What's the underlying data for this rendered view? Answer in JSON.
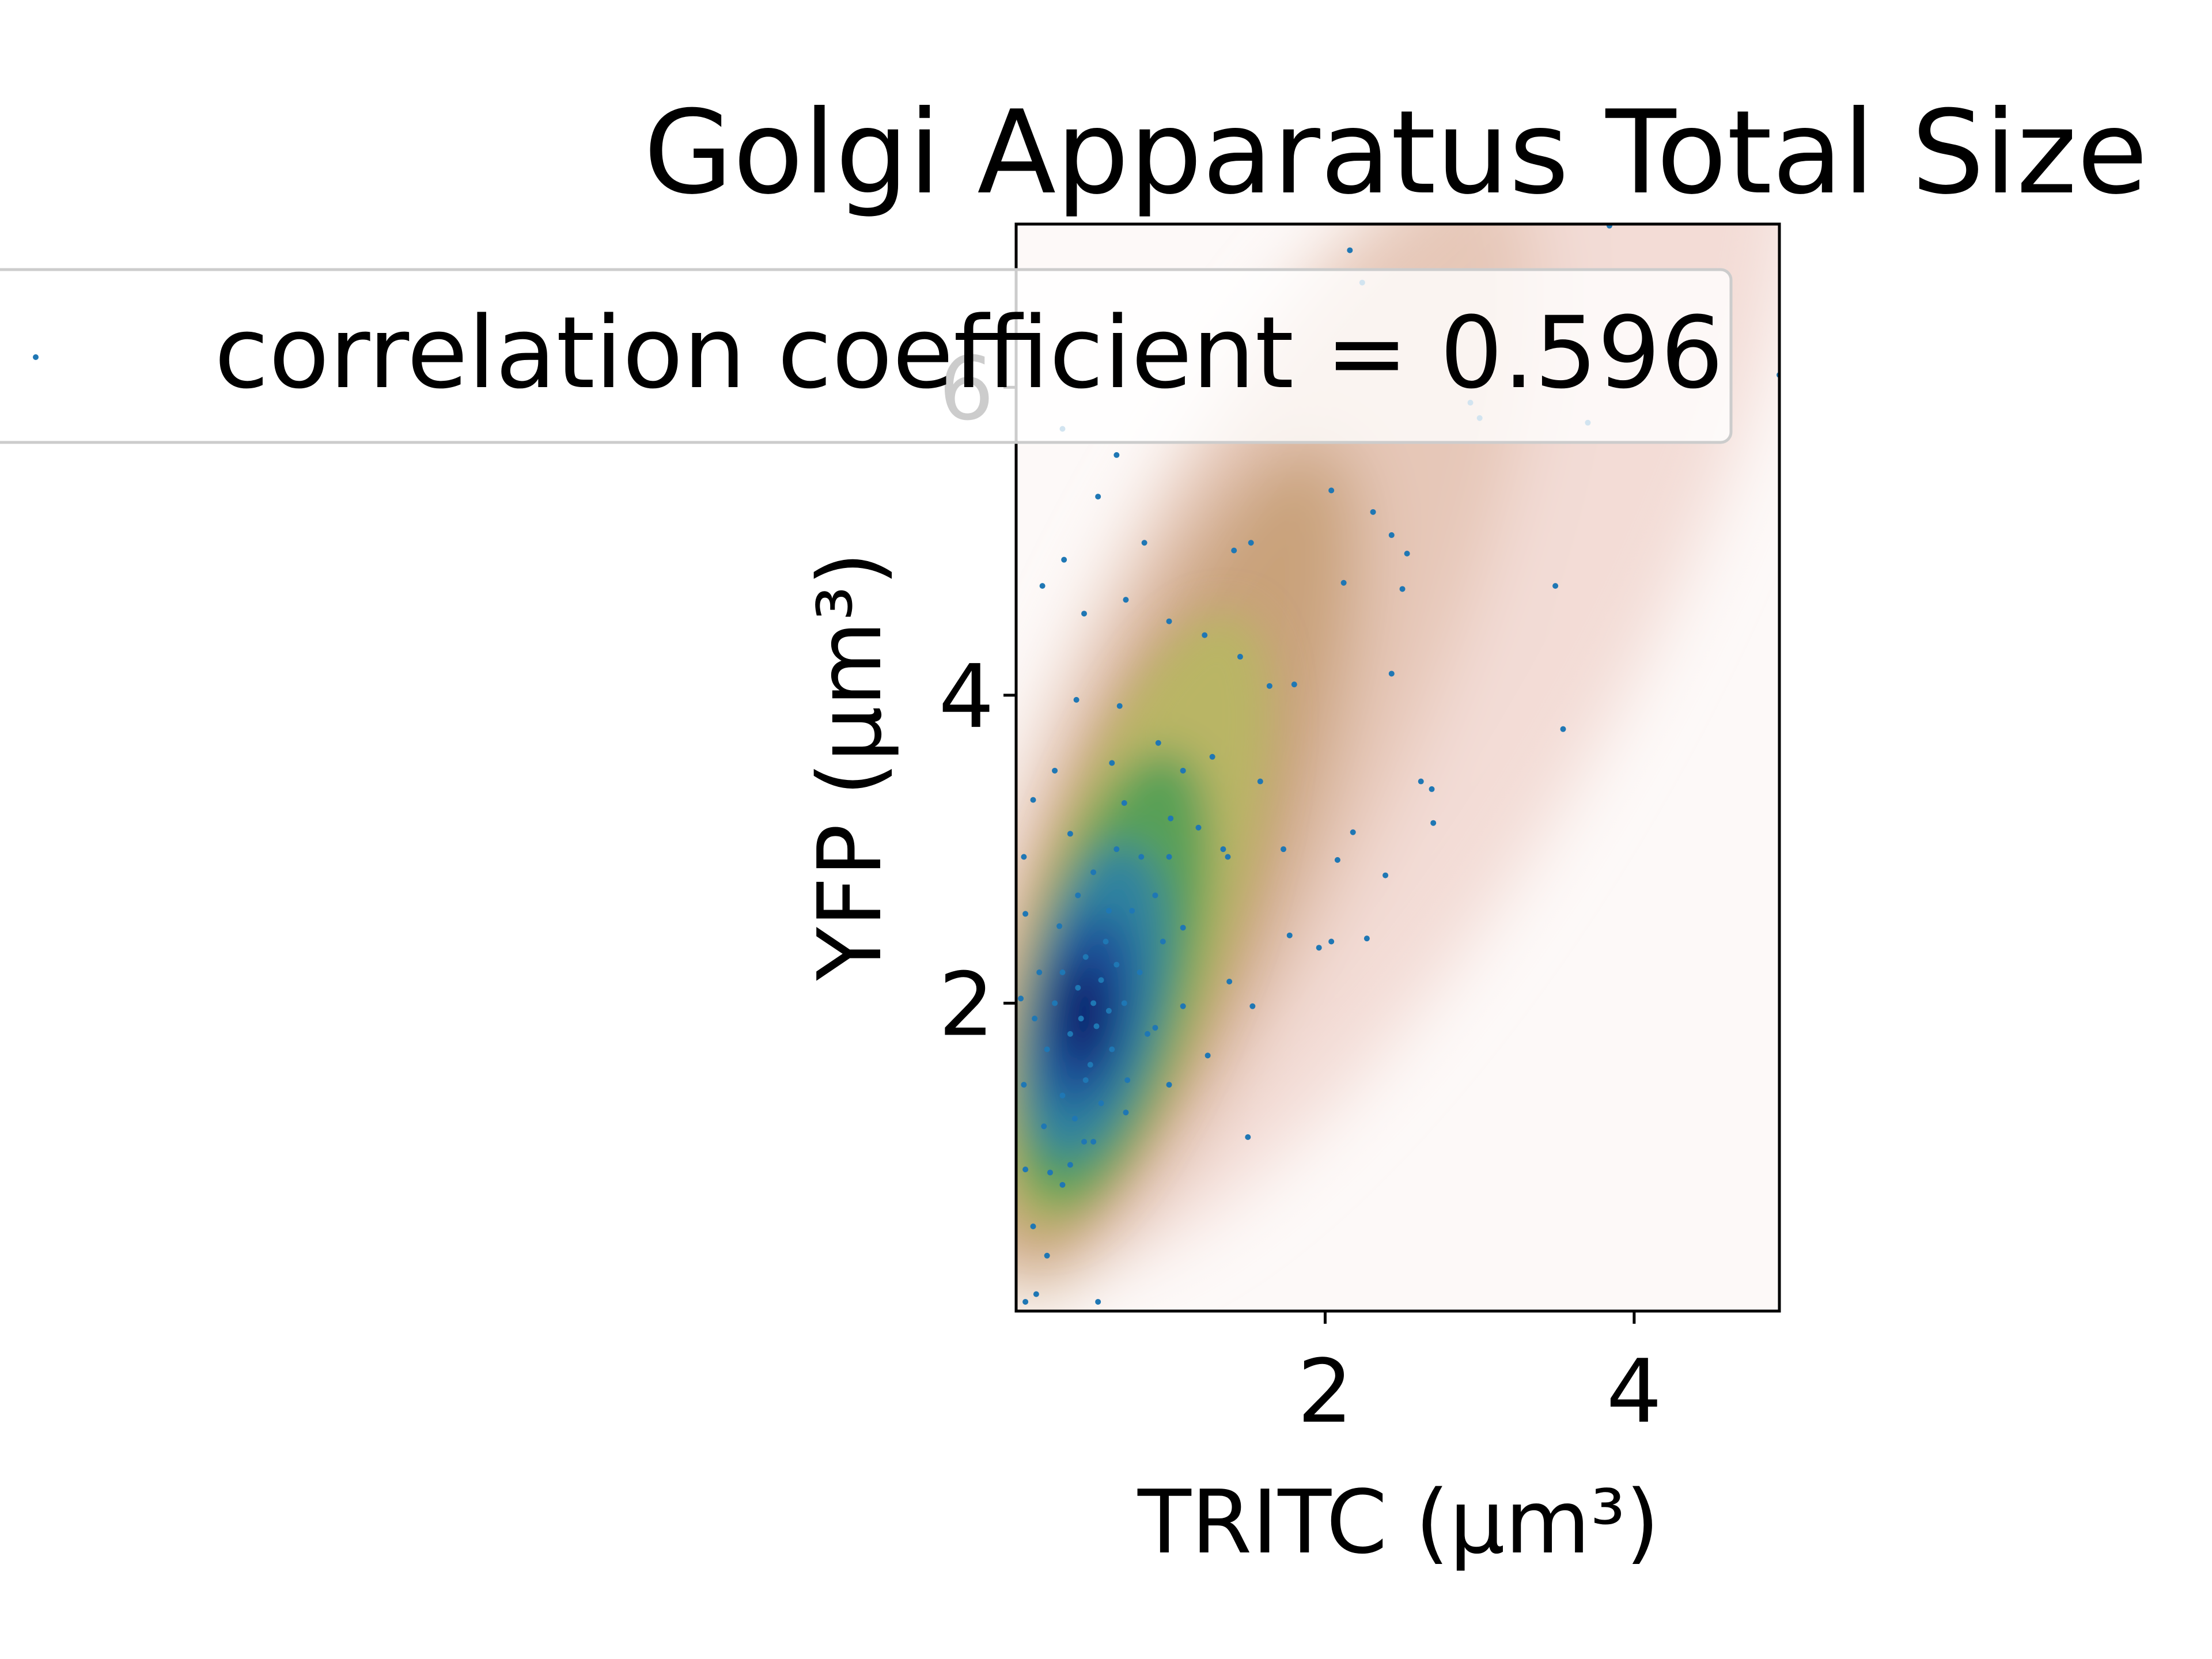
{
  "chart_data": {
    "type": "scatter",
    "title": "Golgi Apparatus Total Size",
    "x_label": "TRITC (μm³)",
    "y_label": "YFP (μm³)",
    "x": [
      2.16,
      2.24,
      3.84,
      4.94,
      3.49,
      3.54,
      2.94,
      3.0,
      3.7,
      2.04,
      2.31,
      2.43,
      2.53,
      2.12,
      2.5,
      2.43,
      2.62,
      2.69,
      2.7,
      2.18,
      2.08,
      2.39,
      1.73,
      1.77,
      1.96,
      2.04,
      2.27,
      1.5,
      1.38,
      1.53,
      1.24,
      1.08,
      0.53,
      0.65,
      0.83,
      0.3,
      0.17,
      0.31,
      0.53,
      0.13,
      0.06,
      1.8,
      1.58,
      1.34,
      1.37,
      1.52,
      1.41,
      1.22,
      1.45,
      1.64,
      0.99,
      0.71,
      0.44,
      0.39,
      0.67,
      0.92,
      1.08,
      1.27,
      0.62,
      0.25,
      0.11,
      0.05,
      0.06,
      0.03,
      0.05,
      0.06,
      0.11,
      0.2,
      0.3,
      0.44,
      0.71,
      0.99,
      0.9,
      1.08,
      0.99,
      0.81,
      1.18,
      0.2,
      0.25,
      0.3,
      0.35,
      0.4,
      0.42,
      0.45,
      0.48,
      0.5,
      0.52,
      0.55,
      0.58,
      0.6,
      0.62,
      0.65,
      0.7,
      0.72,
      0.75,
      0.8,
      0.85,
      0.3,
      0.38,
      0.45,
      0.55,
      0.28,
      0.4,
      0.5,
      0.6,
      0.65,
      0.35,
      0.9,
      0.95,
      0.15,
      0.18,
      0.22,
      0.35,
      0.5,
      0.12,
      0.7,
      1.0
    ],
    "series": [
      {
        "name": "correlation coefficient = 0.596",
        "color": "#1f77b4",
        "values": [
          6.89,
          6.68,
          7.05,
          6.08,
          4.71,
          3.78,
          5.9,
          5.8,
          5.77,
          5.33,
          5.19,
          5.04,
          4.92,
          4.73,
          4.69,
          4.14,
          3.44,
          3.39,
          3.17,
          3.11,
          2.93,
          2.83,
          3.0,
          2.44,
          2.36,
          2.4,
          2.42,
          1.13,
          2.14,
          1.98,
          1.66,
          1.98,
          5.29,
          5.56,
          4.99,
          5.73,
          4.71,
          4.88,
          0.06,
          0.11,
          0.06,
          4.07,
          3.44,
          3.0,
          2.95,
          4.99,
          4.94,
          4.39,
          4.25,
          4.06,
          4.48,
          4.62,
          4.53,
          3.97,
          3.93,
          3.69,
          3.51,
          3.6,
          3.56,
          3.51,
          3.32,
          2.95,
          2.58,
          2.03,
          1.47,
          0.92,
          0.55,
          0.36,
          0.82,
          1.1,
          1.29,
          1.47,
          1.84,
          2.49,
          2.95,
          2.95,
          3.14,
          1.7,
          2.0,
          2.2,
          1.8,
          2.1,
          1.9,
          2.3,
          1.6,
          2.0,
          1.85,
          2.15,
          2.4,
          1.95,
          1.7,
          2.25,
          2.0,
          1.5,
          2.6,
          2.2,
          1.8,
          1.4,
          1.25,
          1.5,
          1.35,
          2.5,
          2.7,
          2.85,
          2.6,
          3.0,
          3.1,
          2.7,
          2.4,
          2.2,
          1.2,
          0.9,
          0.95,
          1.1,
          1.9,
          3.3,
          3.2
        ]
      }
    ],
    "xlim": [
      0,
      4.94
    ],
    "ylim": [
      0,
      7.06
    ],
    "xticks": [
      2,
      4
    ],
    "yticks": [
      2,
      4,
      6
    ],
    "grid": false
  }
}
